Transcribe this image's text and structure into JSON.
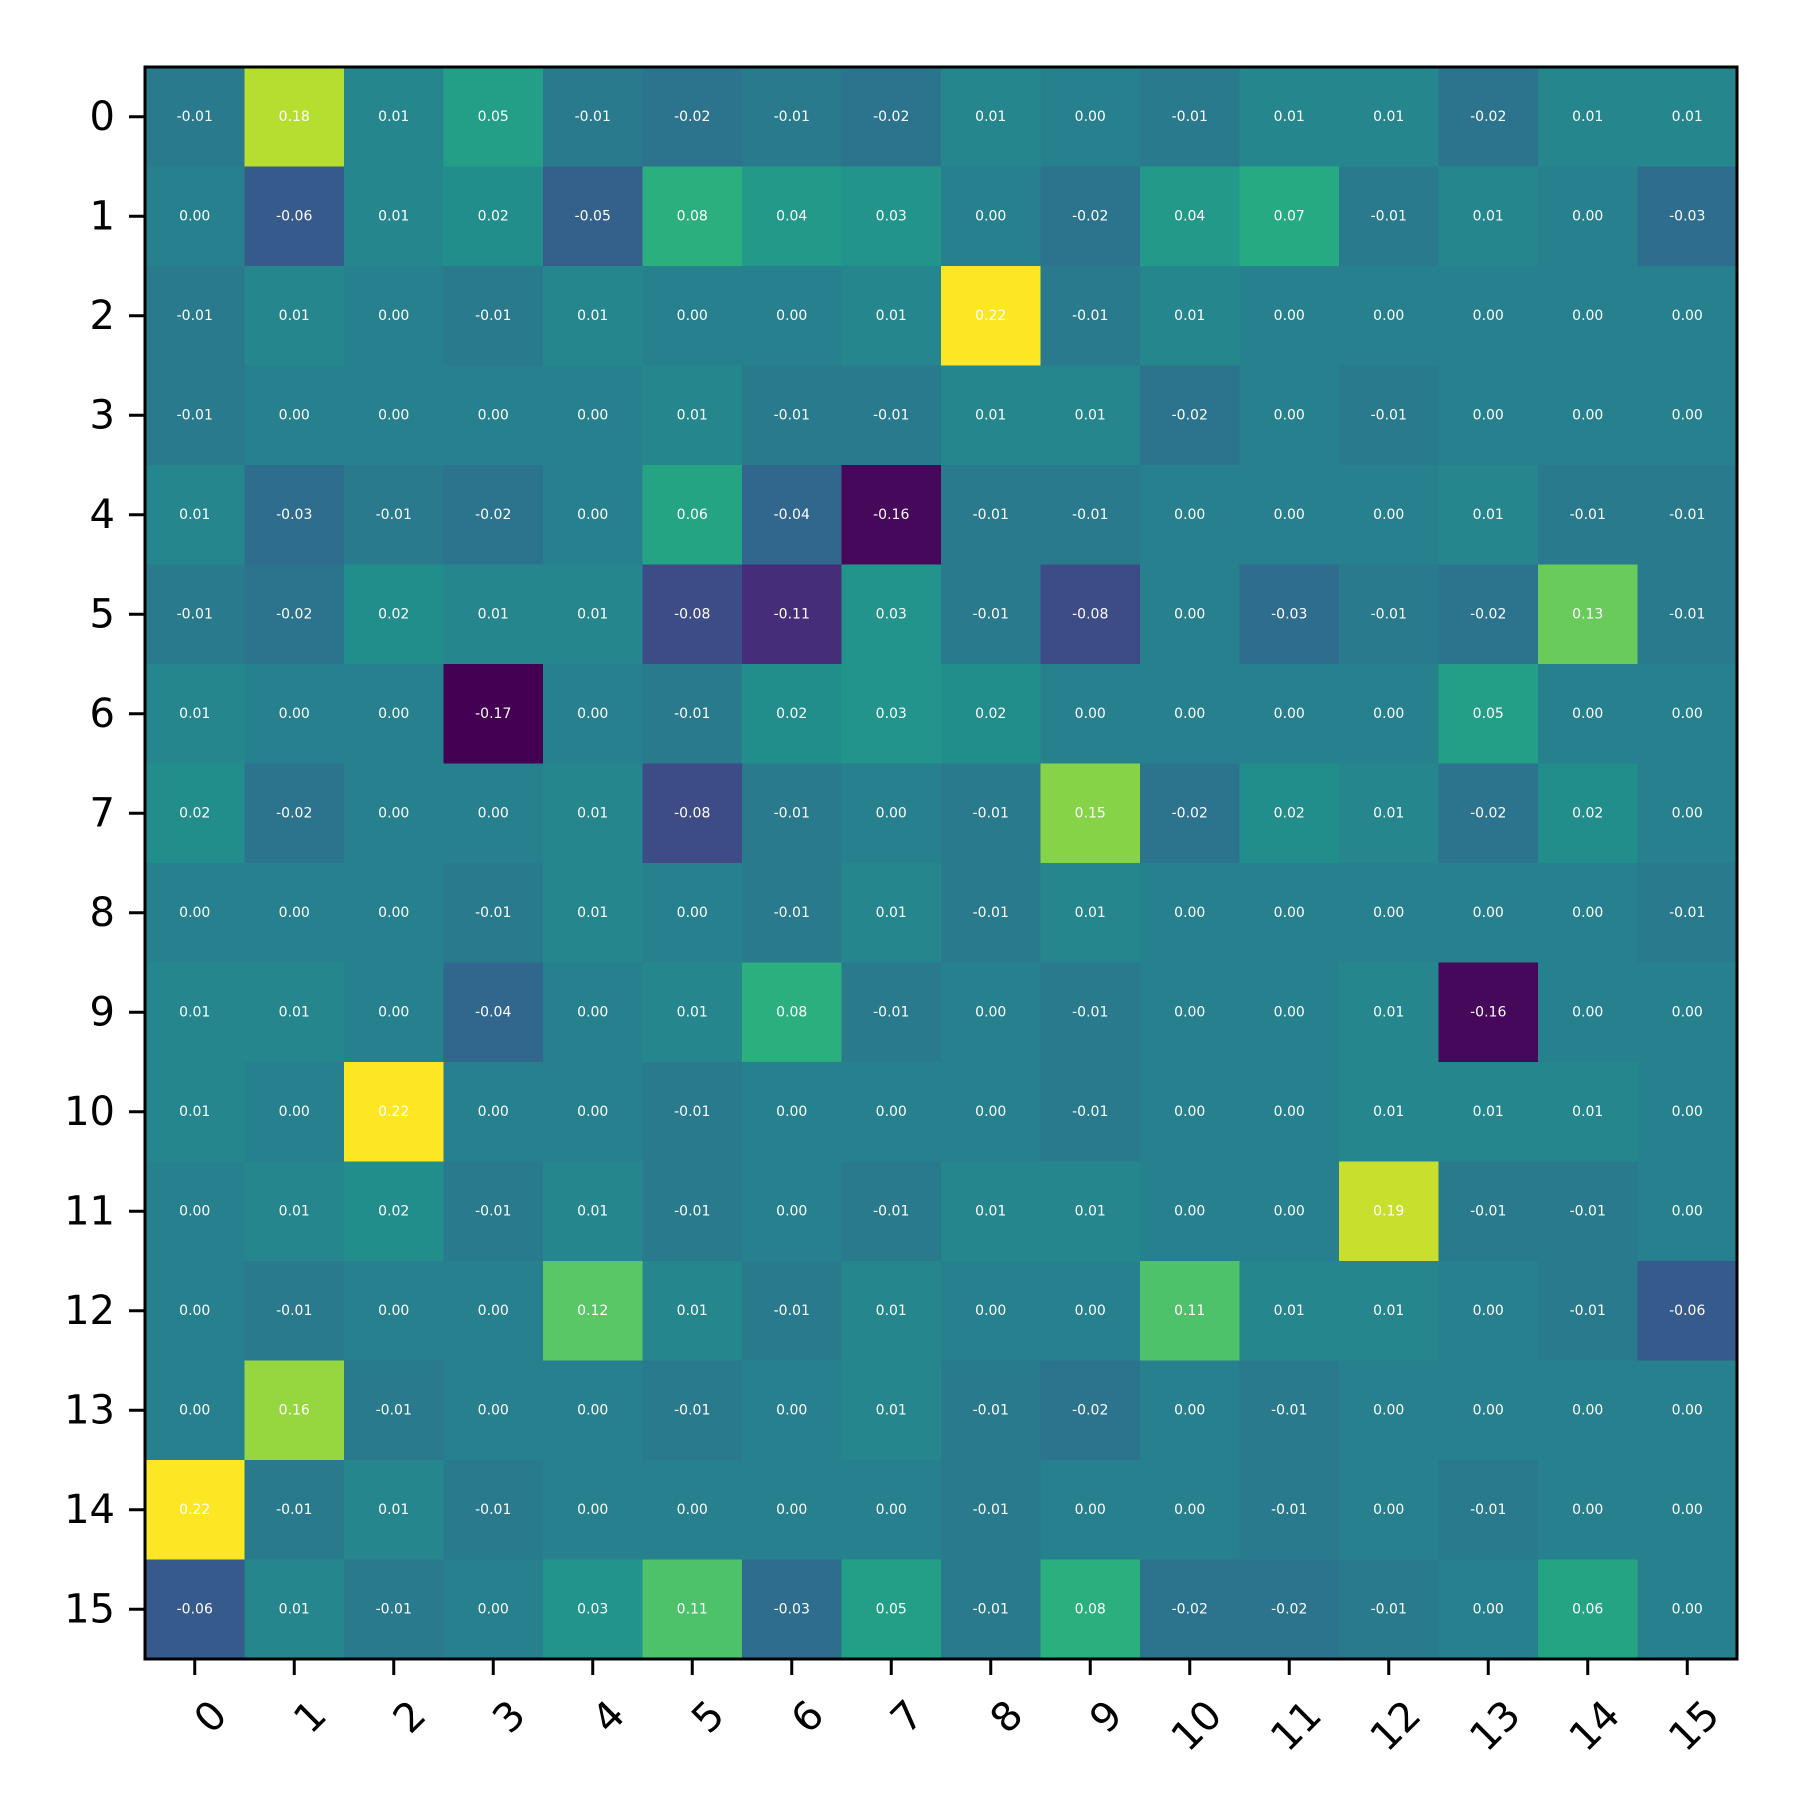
{
  "chart_data": {
    "type": "heatmap",
    "title": "",
    "xlabel": "",
    "ylabel": "",
    "x_labels": [
      "0",
      "1",
      "2",
      "3",
      "4",
      "5",
      "6",
      "7",
      "8",
      "9",
      "10",
      "11",
      "12",
      "13",
      "14",
      "15"
    ],
    "y_labels": [
      "0",
      "1",
      "2",
      "3",
      "4",
      "5",
      "6",
      "7",
      "8",
      "9",
      "10",
      "11",
      "12",
      "13",
      "14",
      "15"
    ],
    "colormap": "viridis",
    "value_range": [
      -0.17,
      0.22
    ],
    "cell_label_color": "#ffffff",
    "values": [
      [
        -0.01,
        0.18,
        0.01,
        0.05,
        -0.01,
        -0.02,
        -0.01,
        -0.02,
        0.01,
        -0.0,
        -0.01,
        0.01,
        0.01,
        -0.02,
        0.01,
        0.01
      ],
      [
        -0.0,
        -0.06,
        0.01,
        0.02,
        -0.05,
        0.08,
        0.04,
        0.03,
        -0.0,
        -0.02,
        0.04,
        0.07,
        -0.01,
        0.01,
        0.0,
        -0.03
      ],
      [
        -0.01,
        0.01,
        0.0,
        -0.01,
        0.01,
        -0.0,
        0.0,
        0.01,
        0.22,
        -0.01,
        0.01,
        0.0,
        -0.0,
        0.0,
        -0.0,
        -0.0
      ],
      [
        -0.01,
        0.0,
        -0.0,
        -0.0,
        -0.0,
        0.01,
        -0.01,
        -0.01,
        0.01,
        0.01,
        -0.02,
        -0.0,
        -0.01,
        0.0,
        -0.0,
        -0.0
      ],
      [
        0.01,
        -0.03,
        -0.01,
        -0.02,
        0.0,
        0.06,
        -0.04,
        -0.16,
        -0.01,
        -0.01,
        -0.0,
        0.0,
        0.0,
        0.01,
        -0.01,
        -0.01
      ],
      [
        -0.01,
        -0.02,
        0.02,
        0.01,
        0.01,
        -0.08,
        -0.11,
        0.03,
        -0.01,
        -0.08,
        0.0,
        -0.03,
        -0.01,
        -0.02,
        0.13,
        -0.01
      ],
      [
        0.01,
        0.0,
        0.0,
        -0.17,
        0.0,
        -0.01,
        0.02,
        0.03,
        0.02,
        0.0,
        -0.0,
        0.0,
        0.0,
        0.05,
        0.0,
        -0.0
      ],
      [
        0.02,
        -0.02,
        0.0,
        -0.0,
        0.01,
        -0.08,
        -0.01,
        -0.0,
        -0.01,
        0.15,
        -0.02,
        0.02,
        0.01,
        -0.02,
        0.02,
        -0.0
      ],
      [
        0.0,
        -0.0,
        0.0,
        -0.01,
        0.01,
        0.0,
        -0.01,
        0.01,
        -0.01,
        0.01,
        -0.0,
        0.0,
        0.0,
        -0.0,
        -0.0,
        -0.01
      ],
      [
        0.01,
        0.01,
        0.0,
        -0.04,
        -0.0,
        0.01,
        0.08,
        -0.01,
        0.0,
        -0.01,
        -0.0,
        -0.0,
        0.01,
        -0.16,
        -0.0,
        -0.0
      ],
      [
        0.01,
        -0.0,
        0.22,
        0.0,
        -0.0,
        -0.01,
        -0.0,
        0.0,
        0.0,
        -0.01,
        -0.0,
        0.0,
        0.01,
        0.01,
        0.01,
        0.0
      ],
      [
        -0.0,
        0.01,
        0.02,
        -0.01,
        0.01,
        -0.01,
        0.0,
        -0.01,
        0.01,
        0.01,
        0.0,
        -0.0,
        0.19,
        -0.01,
        -0.01,
        -0.0
      ],
      [
        -0.0,
        -0.01,
        -0.0,
        -0.0,
        0.12,
        0.01,
        -0.01,
        0.01,
        0.0,
        0.0,
        0.11,
        0.01,
        0.01,
        0.0,
        -0.01,
        -0.06
      ],
      [
        0.0,
        0.16,
        -0.01,
        0.0,
        -0.0,
        -0.01,
        0.0,
        0.01,
        -0.01,
        -0.02,
        0.0,
        -0.01,
        -0.0,
        0.0,
        0.0,
        0.0
      ],
      [
        0.22,
        -0.01,
        0.01,
        -0.01,
        0.0,
        -0.0,
        -0.0,
        -0.0,
        -0.01,
        0.0,
        -0.0,
        -0.01,
        -0.0,
        -0.01,
        -0.0,
        0.0
      ],
      [
        -0.06,
        0.01,
        -0.01,
        -0.0,
        0.03,
        0.11,
        -0.03,
        0.05,
        -0.01,
        0.08,
        -0.02,
        -0.02,
        -0.01,
        -0.0,
        0.06,
        0.0
      ]
    ]
  }
}
